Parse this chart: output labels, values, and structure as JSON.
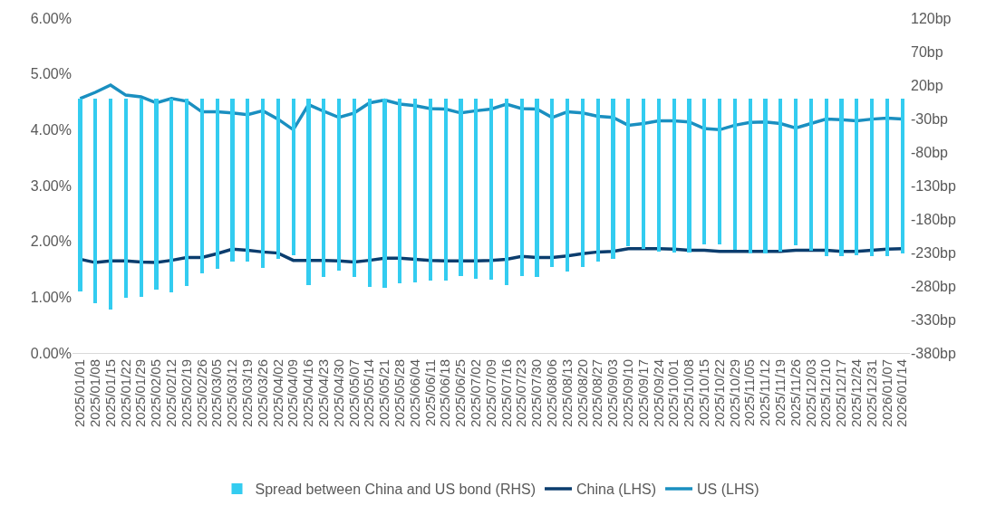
{
  "chart_data": {
    "type": "line",
    "categories": [
      "2025/01/01",
      "2025/01/08",
      "2025/01/15",
      "2025/01/22",
      "2025/01/29",
      "2025/02/05",
      "2025/02/12",
      "2025/02/19",
      "2025/02/26",
      "2025/03/05",
      "2025/03/12",
      "2025/03/19",
      "2025/03/26",
      "2025/04/02",
      "2025/04/09",
      "2025/04/16",
      "2025/04/23",
      "2025/04/30",
      "2025/05/07",
      "2025/05/14",
      "2025/05/21",
      "2025/05/28",
      "2025/06/04",
      "2025/06/11",
      "2025/06/18",
      "2025/06/25",
      "2025/07/02",
      "2025/07/09",
      "2025/07/16",
      "2025/07/23",
      "2025/07/30",
      "2025/08/06",
      "2025/08/13",
      "2025/08/20",
      "2025/08/27",
      "2025/09/03",
      "2025/09/10",
      "2025/09/17",
      "2025/09/24",
      "2025/10/01",
      "2025/10/08",
      "2025/10/15",
      "2025/10/22",
      "2025/10/29",
      "2025/11/05",
      "2025/11/12",
      "2025/11/19",
      "2025/11/26",
      "2025/12/03",
      "2025/12/10",
      "2025/12/17",
      "2025/12/24",
      "2025/12/31",
      "2026/01/07",
      "2026/01/14"
    ],
    "series": [
      {
        "name": "Spread between China and US bond (RHS)",
        "type": "bar",
        "axis": "y2",
        "color": "#33ccf0",
        "values": [
          -288,
          -305,
          -315,
          -297,
          -296,
          -286,
          -290,
          -280,
          -261,
          -254,
          -244,
          -243,
          -253,
          -240,
          -234,
          -279,
          -267,
          -257,
          -267,
          -282,
          -283,
          -276,
          -275,
          -272,
          -272,
          -265,
          -269,
          -271,
          -278,
          -265,
          -266,
          -251,
          -258,
          -252,
          -243,
          -240,
          -221,
          -224,
          -229,
          -230,
          -230,
          -218,
          -218,
          -226,
          -231,
          -232,
          -229,
          -219,
          -227,
          -235,
          -236,
          -234,
          -235,
          -235,
          -232
        ]
      },
      {
        "name": "China (LHS)",
        "color": "#0b3d6e",
        "values": [
          1.68,
          1.62,
          1.65,
          1.65,
          1.63,
          1.62,
          1.66,
          1.71,
          1.71,
          1.78,
          1.86,
          1.84,
          1.81,
          1.79,
          1.66,
          1.66,
          1.66,
          1.65,
          1.63,
          1.66,
          1.7,
          1.7,
          1.68,
          1.66,
          1.65,
          1.65,
          1.65,
          1.66,
          1.68,
          1.73,
          1.71,
          1.71,
          1.74,
          1.78,
          1.81,
          1.82,
          1.87,
          1.87,
          1.87,
          1.86,
          1.84,
          1.84,
          1.82,
          1.82,
          1.82,
          1.82,
          1.82,
          1.84,
          1.84,
          1.84,
          1.82,
          1.82,
          1.84,
          1.86,
          1.87
        ]
      },
      {
        "name": "US (LHS)",
        "color": "#1a8fc0",
        "values": [
          4.56,
          4.67,
          4.8,
          4.62,
          4.59,
          4.48,
          4.56,
          4.51,
          4.32,
          4.32,
          4.3,
          4.27,
          4.34,
          4.19,
          4.0,
          4.45,
          4.33,
          4.22,
          4.3,
          4.48,
          4.53,
          4.46,
          4.43,
          4.38,
          4.37,
          4.3,
          4.34,
          4.37,
          4.46,
          4.38,
          4.37,
          4.22,
          4.32,
          4.3,
          4.24,
          4.22,
          4.08,
          4.11,
          4.16,
          4.16,
          4.14,
          4.02,
          4.0,
          4.08,
          4.13,
          4.14,
          4.11,
          4.03,
          4.11,
          4.19,
          4.18,
          4.16,
          4.19,
          4.21,
          4.19
        ]
      }
    ],
    "ylim": [
      0,
      6
    ],
    "yticks": [
      {
        "value": 0,
        "label": "0.00%"
      },
      {
        "value": 1,
        "label": "1.00%"
      },
      {
        "value": 2,
        "label": "2.00%"
      },
      {
        "value": 3,
        "label": "3.00%"
      },
      {
        "value": 4,
        "label": "4.00%"
      },
      {
        "value": 5,
        "label": "5.00%"
      },
      {
        "value": 6,
        "label": "6.00%"
      }
    ],
    "y2lim": [
      -380,
      120
    ],
    "y2ticks": [
      {
        "value": -380,
        "label": "-380bp"
      },
      {
        "value": -330,
        "label": "-330bp"
      },
      {
        "value": -280,
        "label": "-280bp"
      },
      {
        "value": -230,
        "label": "-230bp"
      },
      {
        "value": -180,
        "label": "-180bp"
      },
      {
        "value": -130,
        "label": "-130bp"
      },
      {
        "value": -80,
        "label": "-80bp"
      },
      {
        "value": -30,
        "label": "-30bp"
      },
      {
        "value": 20,
        "label": "20bp"
      },
      {
        "value": 70,
        "label": "70bp"
      },
      {
        "value": 120,
        "label": "120bp"
      }
    ],
    "legend": "bottom",
    "line_style": "solid"
  }
}
